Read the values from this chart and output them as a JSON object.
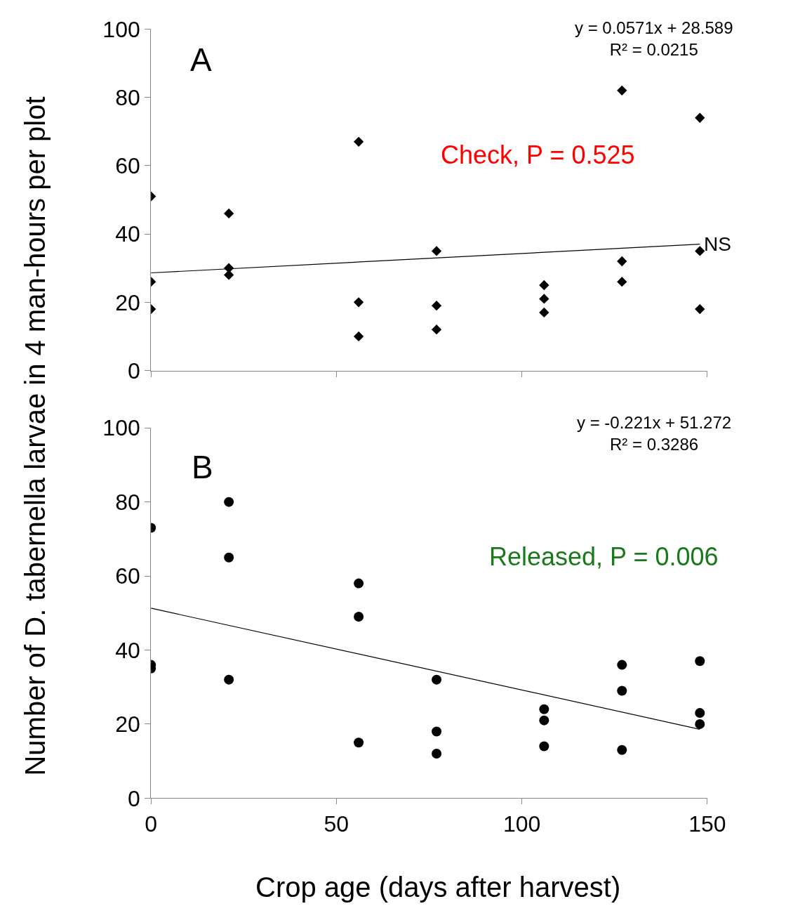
{
  "chart_data": [
    {
      "type": "scatter",
      "ylabel": "Number of D. tabernella larvae in 4 man-hours per plot",
      "xlim": [
        0,
        150
      ],
      "xticks": [
        0,
        50,
        100,
        150
      ],
      "ylim": [
        0,
        100
      ],
      "yticks": [
        0,
        20,
        40,
        60,
        80,
        100
      ],
      "tick_labels": "y",
      "series": [
        {
          "marker": "diamond",
          "color": "#000000",
          "x": [
            0,
            0,
            0,
            21,
            21,
            21,
            56,
            56,
            56,
            77,
            77,
            77,
            106,
            106,
            106,
            127,
            127,
            127,
            148,
            148,
            148
          ],
          "values": [
            51,
            26,
            18,
            46,
            30,
            28,
            67,
            20,
            10,
            35,
            19,
            12,
            25,
            21,
            17,
            82,
            32,
            26,
            74,
            35,
            18
          ]
        },
        {
          "type": "line",
          "marker": "none",
          "color": "#000000",
          "x": [
            0,
            148
          ],
          "values": [
            28.6,
            37.0
          ]
        }
      ],
      "annotations": [
        {
          "text": "A"
        },
        {
          "text": "y = 0.0571x + 28.589\nR² = 0.0215"
        },
        {
          "text": "Check, P = 0.525"
        },
        {
          "text": "NS",
          "x": 148,
          "y": 37
        }
      ]
    },
    {
      "type": "scatter",
      "xlabel": "Crop age (days after harvest)",
      "xlim": [
        0,
        150
      ],
      "xticks": [
        0,
        50,
        100,
        150
      ],
      "ylim": [
        0,
        100
      ],
      "yticks": [
        0,
        20,
        40,
        60,
        80,
        100
      ],
      "series": [
        {
          "marker": "circle",
          "color": "#000000",
          "x": [
            0,
            0,
            0,
            21,
            21,
            21,
            56,
            56,
            56,
            77,
            77,
            77,
            106,
            106,
            106,
            127,
            127,
            127,
            148,
            148,
            148
          ],
          "values": [
            73,
            36,
            35,
            80,
            65,
            32,
            58,
            49,
            15,
            32,
            18,
            12,
            24,
            21,
            14,
            36,
            29,
            13,
            37,
            23,
            20
          ]
        },
        {
          "type": "line",
          "marker": "none",
          "color": "#000000",
          "x": [
            0,
            148
          ],
          "values": [
            51.3,
            18.6
          ]
        }
      ],
      "annotations": [
        {
          "text": "B"
        },
        {
          "text": "y = -0.221x + 51.272\nR² = 0.3286"
        },
        {
          "text": "Released, P = 0.006"
        }
      ]
    }
  ]
}
